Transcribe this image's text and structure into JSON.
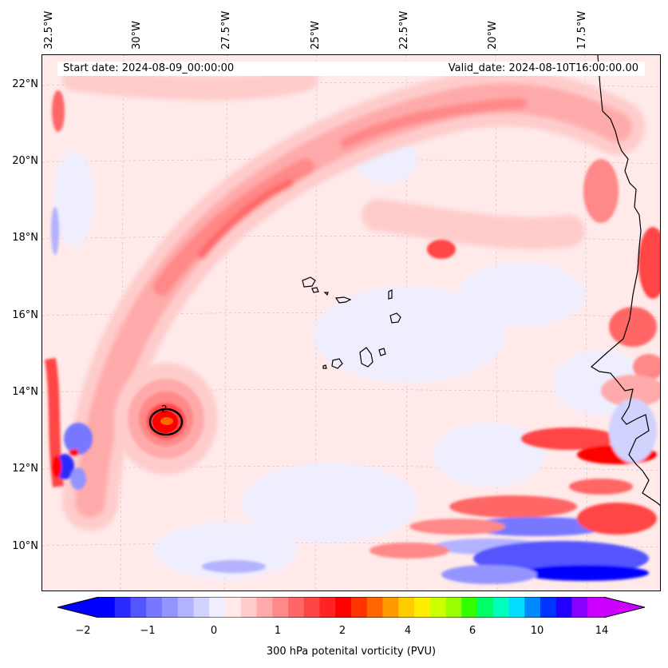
{
  "map": {
    "longitude_labels": [
      "32.5°W",
      "30°W",
      "27.5°W",
      "25°W",
      "22.5°W",
      "20°W",
      "17.5°W"
    ],
    "latitude_labels": [
      "22°N",
      "20°N",
      "18°N",
      "16°N",
      "14°N",
      "12°N",
      "10°N"
    ],
    "start_date": "Start date: 2024-08-09_00:00:00",
    "valid_date": "Valid_date: 2024-08-10T16:00:00.00",
    "contour_label": "2"
  },
  "colorbar": {
    "label": "300 hPa potenital vorticity (PVU)",
    "tick_labels": [
      "−2",
      "−1",
      "0",
      "1",
      "2",
      "4",
      "6",
      "10",
      "14"
    ],
    "colors": [
      "#0000ff",
      "#2a2aff",
      "#5555ff",
      "#7777ff",
      "#9494ff",
      "#b2b2ff",
      "#d2d2ff",
      "#eeeeff",
      "#ffe9e9",
      "#ffcccc",
      "#ffaaaa",
      "#ff8888",
      "#ff6666",
      "#ff4444",
      "#ff2222",
      "#ff0000",
      "#ff3300",
      "#ff6600",
      "#ff9900",
      "#ffcc00",
      "#ffee00",
      "#ccff00",
      "#99ff00",
      "#33ff00",
      "#00ff66",
      "#00ffbb",
      "#00ddff",
      "#0088ff",
      "#0033ff",
      "#2200ff",
      "#8800ff",
      "#cc00ff"
    ],
    "min_color": "#0000ff",
    "max_color": "#cc00ff"
  }
}
